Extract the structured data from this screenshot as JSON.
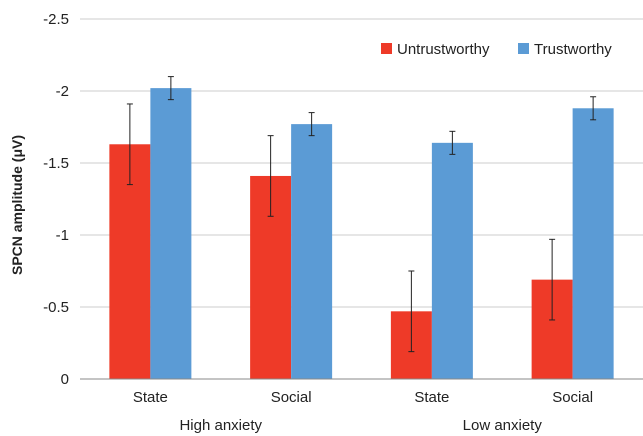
{
  "chart_data": {
    "type": "bar",
    "ylabel": "SPCN amplitude (μV)",
    "yticks": [
      "-2.5",
      "-2",
      "-1.5",
      "-1",
      "-0.5",
      "0"
    ],
    "ylim": [
      0,
      -2.5
    ],
    "y_inverted": true,
    "categories": [
      "State",
      "Social",
      "State",
      "Social"
    ],
    "groups": [
      {
        "label": "High anxiety",
        "categories": [
          "State",
          "Social"
        ]
      },
      {
        "label": "Low anxiety",
        "categories": [
          "State",
          "Social"
        ]
      }
    ],
    "series": [
      {
        "name": "Untrustworthy",
        "color": "#ee3a28",
        "values": [
          -1.63,
          -1.41,
          -0.47,
          -0.69
        ],
        "errors": [
          0.28,
          0.28,
          0.28,
          0.28
        ]
      },
      {
        "name": "Trustworthy",
        "color": "#5b9bd5",
        "values": [
          -2.02,
          -1.77,
          -1.64,
          -1.88
        ],
        "errors": [
          0.08,
          0.08,
          0.08,
          0.08
        ]
      }
    ],
    "legend_position": "top-right",
    "grid": "horizontal"
  }
}
